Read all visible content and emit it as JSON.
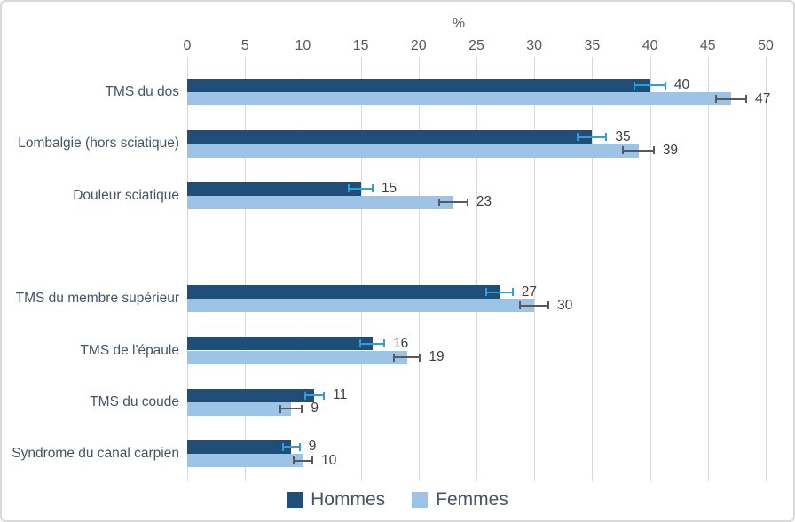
{
  "chart_data": {
    "type": "bar",
    "orientation": "horizontal",
    "axis_title": "%",
    "xlim": [
      0,
      50
    ],
    "tick_step": 5,
    "grid": true,
    "legend_position": "bottom",
    "series": [
      {
        "name": "Hommes",
        "color": "#1F4E79",
        "error_color": "#2E9FD9"
      },
      {
        "name": "Femmes",
        "color": "#9DC3E6",
        "error_color": "#595959"
      }
    ],
    "categories": [
      {
        "label": "TMS du dos",
        "values": [
          40,
          47
        ],
        "errors": [
          1.4,
          1.4
        ]
      },
      {
        "label": "Lombalgie (hors sciatique)",
        "values": [
          35,
          39
        ],
        "errors": [
          1.3,
          1.4
        ]
      },
      {
        "label": "Douleur sciatique",
        "values": [
          15,
          23
        ],
        "errors": [
          1.1,
          1.3
        ]
      },
      {
        "label": "",
        "values": null,
        "errors": null
      },
      {
        "label": "TMS du membre supérieur",
        "values": [
          27,
          30
        ],
        "errors": [
          1.2,
          1.3
        ]
      },
      {
        "label": "TMS de l'épaule",
        "values": [
          16,
          19
        ],
        "errors": [
          1.1,
          1.2
        ]
      },
      {
        "label": "TMS du coude",
        "values": [
          11,
          9
        ],
        "errors": [
          0.9,
          1.0
        ]
      },
      {
        "label": "Syndrome du canal carpien",
        "values": [
          9,
          10
        ],
        "errors": [
          0.8,
          0.9
        ]
      }
    ],
    "colors": {
      "grid": "#D9D9D9",
      "tick_label": "#595959",
      "category_label": "#44546A",
      "value_label": "#404040",
      "axis_title": "#595959",
      "legend_text": "#44546A",
      "figure_border": "#D9D9D9",
      "background": "#FFFFFF"
    }
  }
}
